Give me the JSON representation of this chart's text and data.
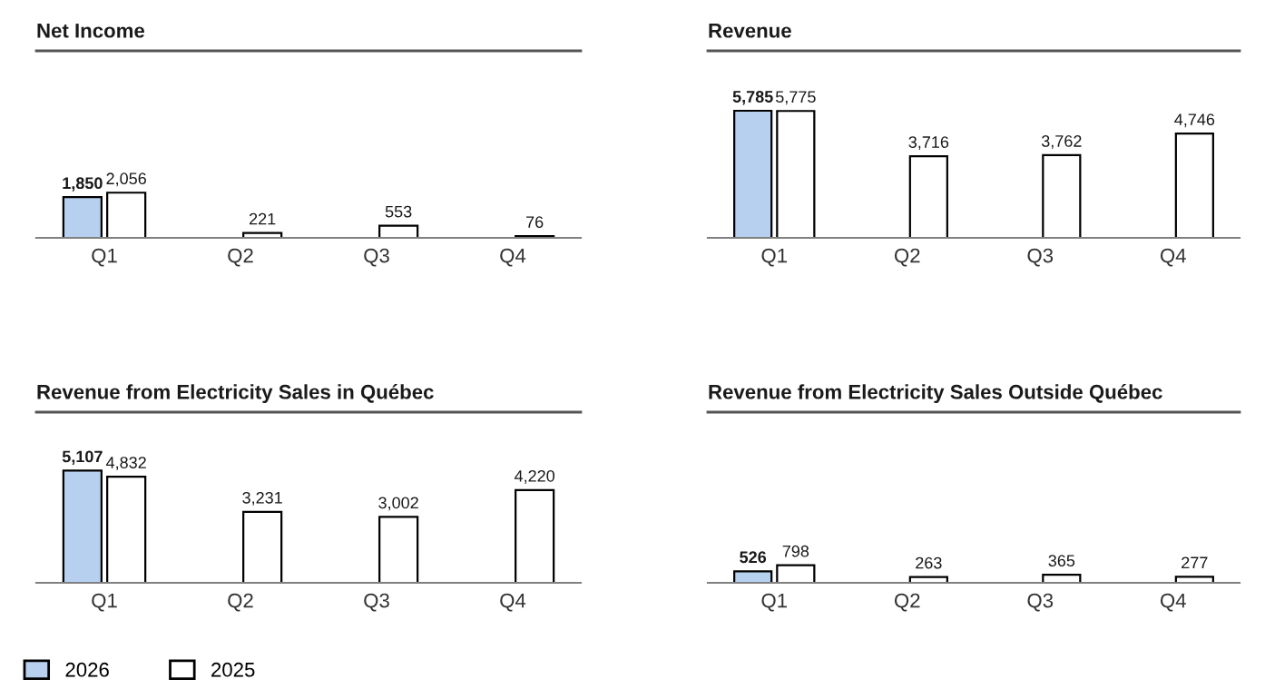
{
  "chart_data": [
    {
      "type": "bar",
      "title": "Net Income",
      "categories": [
        "Q1",
        "Q2",
        "Q3",
        "Q4"
      ],
      "legend": "bottom left",
      "series": [
        {
          "name": "2026",
          "color": "#b8d0f0",
          "values": [
            1850,
            null,
            null,
            null
          ],
          "value_labels": [
            "1,850",
            null,
            null,
            null
          ]
        },
        {
          "name": "2025",
          "color": "#ffffff",
          "values": [
            2056,
            221,
            553,
            76
          ],
          "value_labels": [
            "2,056",
            "221",
            "553",
            "76"
          ]
        }
      ]
    },
    {
      "type": "bar",
      "title": "Revenue",
      "categories": [
        "Q1",
        "Q2",
        "Q3",
        "Q4"
      ],
      "series": [
        {
          "name": "2026",
          "color": "#b8d0f0",
          "values": [
            5785,
            null,
            null,
            null
          ],
          "value_labels": [
            "5,785",
            null,
            null,
            null
          ]
        },
        {
          "name": "2025",
          "color": "#ffffff",
          "values": [
            5775,
            3716,
            3762,
            4746
          ],
          "value_labels": [
            "5,775",
            "3,716",
            "3,762",
            "4,746"
          ]
        }
      ]
    },
    {
      "type": "bar",
      "title": "Revenue from Electricity Sales in Québec",
      "categories": [
        "Q1",
        "Q2",
        "Q3",
        "Q4"
      ],
      "series": [
        {
          "name": "2026",
          "color": "#b8d0f0",
          "values": [
            5107,
            null,
            null,
            null
          ],
          "value_labels": [
            "5,107",
            null,
            null,
            null
          ]
        },
        {
          "name": "2025",
          "color": "#ffffff",
          "values": [
            4832,
            3231,
            3002,
            4220
          ],
          "value_labels": [
            "4,832",
            "3,231",
            "3,002",
            "4,220"
          ]
        }
      ]
    },
    {
      "type": "bar",
      "title": "Revenue from Electricity Sales Outside Québec",
      "categories": [
        "Q1",
        "Q2",
        "Q3",
        "Q4"
      ],
      "series": [
        {
          "name": "2026",
          "color": "#b8d0f0",
          "values": [
            526,
            null,
            null,
            null
          ],
          "value_labels": [
            "526",
            null,
            null,
            null
          ]
        },
        {
          "name": "2025",
          "color": "#ffffff",
          "values": [
            798,
            263,
            365,
            277
          ],
          "value_labels": [
            "798",
            "263",
            "365",
            "277"
          ]
        }
      ]
    }
  ]
}
